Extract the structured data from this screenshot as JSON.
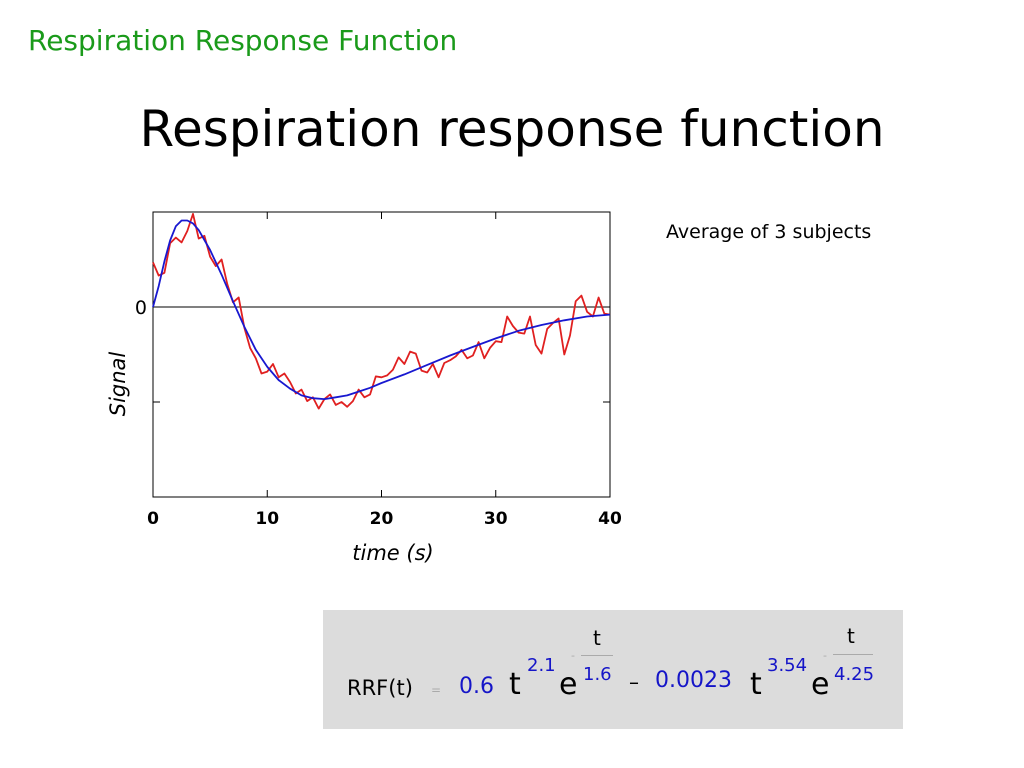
{
  "slide": {
    "header_title": "Respiration Response Function",
    "main_title": "Respiration response function",
    "annotation": "Average of 3 subjects"
  },
  "colors": {
    "header": "#1a9a1a",
    "measured": "#e02020",
    "fit": "#1818d0",
    "formula_numbers": "#1515c8",
    "formula_box": "#dcdcdc"
  },
  "formula": {
    "lhs": "RRF(t)",
    "eq": "=",
    "coef1": "0.6",
    "t1": "t",
    "exp1": "2.1",
    "e1": "e",
    "minus1": "-",
    "frac1_num": "t",
    "frac1_den": "1.6",
    "op": "–",
    "coef2": "0.0023",
    "t2": "t",
    "exp2": "3.54",
    "e2": "e",
    "minus2": "-",
    "frac2_num": "t",
    "frac2_den": "4.25"
  },
  "chart_data": {
    "type": "line",
    "xlabel": "time (s)",
    "ylabel": "Signal",
    "xlim": [
      0,
      40
    ],
    "ylim": [
      -2,
      1
    ],
    "xticks": [
      0,
      10,
      20,
      30,
      40
    ],
    "xtick_labels": [
      "0",
      "10",
      "20",
      "30",
      "40"
    ],
    "yticks": [
      -2,
      -1,
      0,
      1
    ],
    "ytick_labels": [
      "",
      "",
      "0",
      ""
    ],
    "grid": false,
    "zero_line": true,
    "series": [
      {
        "color": "#e02020",
        "x": [
          0,
          0.5,
          1,
          1.5,
          2,
          2.5,
          3,
          3.5,
          4,
          4.5,
          5,
          5.5,
          6,
          6.5,
          7,
          7.5,
          8,
          8.5,
          9,
          9.5,
          10,
          10.5,
          11,
          11.5,
          12,
          12.5,
          13,
          13.5,
          14,
          14.5,
          15,
          15.5,
          16,
          16.5,
          17,
          17.5,
          18,
          18.5,
          19,
          19.5,
          20,
          20.5,
          21,
          21.5,
          22,
          22.5,
          23,
          23.5,
          24,
          24.5,
          25,
          25.5,
          26,
          26.5,
          27,
          27.5,
          28,
          28.5,
          29,
          29.5,
          30,
          30.5,
          31,
          31.5,
          32,
          32.5,
          33,
          33.5,
          34,
          34.5,
          35,
          35.5,
          36,
          36.5,
          37,
          37.5,
          38,
          38.5,
          39,
          39.5,
          40
        ],
        "values": [
          0.47,
          0.33,
          0.36,
          0.67,
          0.73,
          0.68,
          0.8,
          0.98,
          0.72,
          0.75,
          0.53,
          0.43,
          0.5,
          0.24,
          0.05,
          0.1,
          -0.22,
          -0.43,
          -0.54,
          -0.7,
          -0.68,
          -0.6,
          -0.74,
          -0.7,
          -0.79,
          -0.91,
          -0.87,
          -0.99,
          -0.95,
          -1.07,
          -0.97,
          -0.92,
          -1.03,
          -1.0,
          -1.05,
          -0.99,
          -0.87,
          -0.95,
          -0.92,
          -0.73,
          -0.74,
          -0.72,
          -0.66,
          -0.53,
          -0.6,
          -0.47,
          -0.49,
          -0.67,
          -0.69,
          -0.6,
          -0.74,
          -0.59,
          -0.56,
          -0.52,
          -0.45,
          -0.54,
          -0.51,
          -0.37,
          -0.54,
          -0.43,
          -0.36,
          -0.37,
          -0.1,
          -0.2,
          -0.27,
          -0.28,
          -0.1,
          -0.4,
          -0.49,
          -0.23,
          -0.17,
          -0.12,
          -0.5,
          -0.3,
          0.06,
          0.12,
          -0.05,
          -0.1,
          0.1,
          -0.07,
          -0.08
        ]
      },
      {
        "color": "#1818d0",
        "x": [
          0,
          0.5,
          1,
          1.5,
          2,
          2.5,
          3,
          3.5,
          4,
          5,
          6,
          7,
          8,
          9,
          10,
          11,
          12,
          13,
          14,
          15,
          16,
          17,
          18,
          19,
          20,
          22,
          24,
          26,
          28,
          30,
          32,
          34,
          36,
          38,
          40
        ],
        "values": [
          0.0,
          0.22,
          0.48,
          0.7,
          0.85,
          0.91,
          0.91,
          0.88,
          0.81,
          0.6,
          0.34,
          0.06,
          -0.21,
          -0.45,
          -0.63,
          -0.77,
          -0.86,
          -0.93,
          -0.96,
          -0.97,
          -0.95,
          -0.93,
          -0.89,
          -0.85,
          -0.8,
          -0.71,
          -0.61,
          -0.51,
          -0.42,
          -0.33,
          -0.25,
          -0.19,
          -0.14,
          -0.1,
          -0.08
        ]
      }
    ]
  }
}
